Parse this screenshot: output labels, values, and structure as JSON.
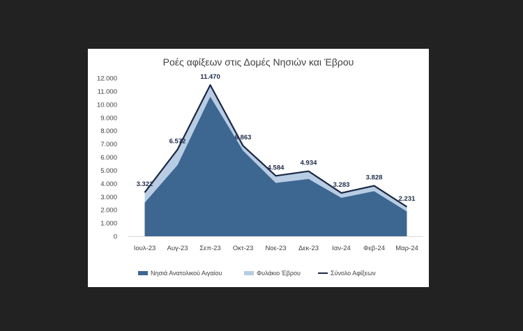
{
  "chart_data": {
    "type": "area",
    "title": "Ροές αφίξεων στις Δομές Νησιών και Έβρου",
    "categories": [
      "Ιουλ-23",
      "Αυγ-23",
      "Σεπ-23",
      "Οκτ-23",
      "Νοε-23",
      "Δεκ-23",
      "Ιαν-24",
      "Φεβ-24",
      "Μαρ-24"
    ],
    "series": [
      {
        "name": "Νησιά Ανατολικού Αιγαίου",
        "type": "area",
        "stacked": true,
        "color": "#3d6791",
        "values": [
          2550,
          5400,
          10600,
          6500,
          4050,
          4350,
          2920,
          3420,
          1880
        ]
      },
      {
        "name": "Φυλάκιο Έβρου",
        "type": "area",
        "stacked": true,
        "color": "#b8cce4",
        "values": [
          772,
          1172,
          870,
          363,
          534,
          584,
          363,
          408,
          351
        ]
      },
      {
        "name": "Σύνολο Αφίξεων",
        "type": "line",
        "color": "#1a2744",
        "values": [
          3322,
          6572,
          11470,
          6863,
          4584,
          4934,
          3283,
          3828,
          2231
        ]
      }
    ],
    "data_labels": [
      "3.322",
      "6.572",
      "11.470",
      "6.863",
      "4.584",
      "4.934",
      "3.283",
      "3.828",
      "2.231"
    ],
    "y_ticks": [
      "0",
      "1.000",
      "2.000",
      "3.000",
      "4.000",
      "5.000",
      "6.000",
      "7.000",
      "8.000",
      "9.000",
      "10.000",
      "11.000",
      "12.000"
    ],
    "ylim": [
      0,
      12000
    ],
    "legend": "bottom",
    "grid": false
  }
}
